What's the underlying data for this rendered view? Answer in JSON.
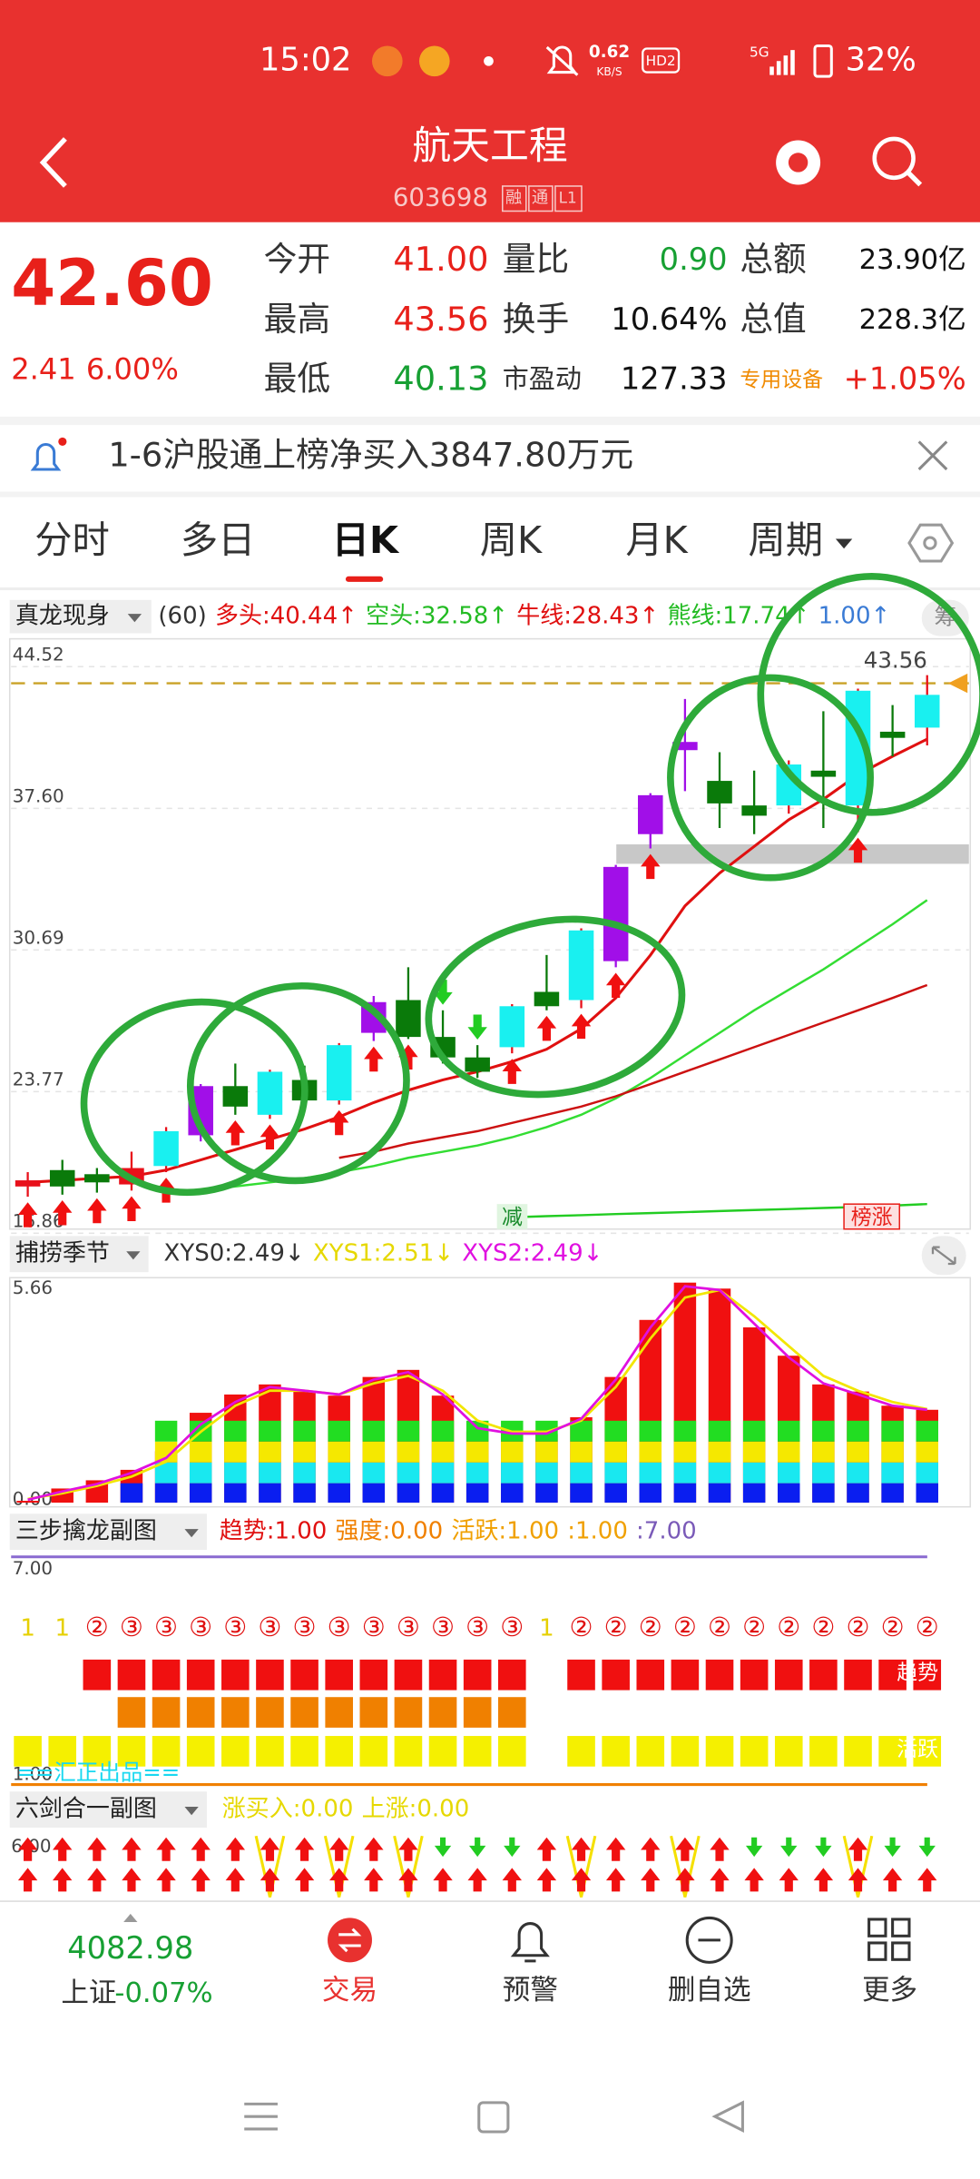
{
  "status_bar": {
    "time": "15:02",
    "speed": "0.62",
    "speed_unit": "KB/S",
    "hd": "HD2",
    "network": "5G",
    "battery": "32%"
  },
  "header": {
    "title": "航天工程",
    "code": "603698",
    "badges": [
      "融",
      "通",
      "L1"
    ]
  },
  "quote": {
    "price": "42.60",
    "change": "2.41",
    "change_pct": "6.00%",
    "rows": [
      [
        {
          "label": "今开",
          "value": "41.00"
        },
        {
          "label": "量比",
          "value": "0.90"
        },
        {
          "label": "总额",
          "value": "23.90亿"
        }
      ],
      [
        {
          "label": "最高",
          "value": "43.56"
        },
        {
          "label": "换手",
          "value": "10.64%"
        },
        {
          "label": "总值",
          "value": "228.3亿"
        }
      ],
      [
        {
          "label": "最低",
          "value": "40.13"
        },
        {
          "label": "市盈动",
          "value": "127.33"
        },
        {
          "label": "专用设备",
          "value": "+1.05%"
        }
      ]
    ]
  },
  "notice": {
    "text": "1-6沪股通上榜净买入3847.80万元"
  },
  "tabs": [
    "分时",
    "多日",
    "日K",
    "周K",
    "月K",
    "周期"
  ],
  "chart_data": [
    {
      "type": "candlestick",
      "title": "真龙现身",
      "button": "筹",
      "legend": [
        {
          "text": "(60)",
          "color": "#333333"
        },
        {
          "text": "多头:40.44↑",
          "color": "#e01010"
        },
        {
          "text": "空头:32.58↑",
          "color": "#22bb22"
        },
        {
          "text": "牛线:28.43↑",
          "color": "#e01010"
        },
        {
          "text": "熊线:17.74↑",
          "color": "#22bb22"
        },
        {
          "text": "1.00↑",
          "color": "#3a7bd5"
        }
      ],
      "ylim": [
        16.86,
        44.52
      ],
      "yticks": [
        16.86,
        23.77,
        30.69,
        {
          "value": 37.6,
          "label": "37.60"
        },
        44.52
      ],
      "open": [
        18.6,
        19.4,
        19.2,
        18.7,
        19.6,
        21.1,
        23.5,
        22.1,
        23.8,
        22.8,
        26.1,
        27.7,
        25.9,
        24.9,
        25.4,
        28.1,
        27.7,
        29.6,
        35.8,
        39.9,
        38.4,
        37.2,
        37.2,
        38.9,
        37.2,
        40.8,
        41.0
      ],
      "high": [
        19.3,
        19.9,
        19.5,
        20.3,
        21.5,
        23.6,
        24.6,
        24.3,
        24.5,
        25.6,
        27.9,
        29.3,
        27.2,
        25.5,
        27.5,
        29.9,
        31.2,
        34.3,
        37.8,
        42.4,
        39.8,
        38.9,
        39.4,
        41.8,
        42.9,
        42.1,
        43.56
      ],
      "low": [
        18.1,
        18.2,
        18.3,
        18.4,
        19.3,
        20.8,
        22.1,
        21.9,
        22.5,
        22.6,
        25.7,
        25.8,
        24.6,
        23.9,
        25.1,
        27.2,
        27.3,
        29.3,
        35.1,
        37.9,
        36.1,
        35.8,
        36.8,
        36.1,
        35.9,
        39.6,
        40.13
      ],
      "close": [
        18.9,
        18.6,
        18.8,
        19.5,
        21.3,
        23.5,
        22.5,
        24.2,
        22.8,
        25.5,
        27.6,
        25.9,
        24.9,
        24.2,
        27.4,
        27.4,
        31.1,
        34.2,
        37.7,
        40.3,
        37.3,
        36.7,
        39.2,
        38.6,
        42.8,
        40.5,
        42.6
      ],
      "colors": [
        "#e8101a",
        "#0a7a0a",
        "#0a7a0a",
        "#e8101a",
        "#19f0f0",
        "#a10fe8",
        "#0a7a0a",
        "#19f0f0",
        "#0a7a0a",
        "#19f0f0",
        "#a10fe8",
        "#0a7a0a",
        "#0a7a0a",
        "#0a7a0a",
        "#19f0f0",
        "#0a7a0a",
        "#19f0f0",
        "#a10fe8",
        "#a10fe8",
        "#a10fe8",
        "#0a7a0a",
        "#0a7a0a",
        "#19f0f0",
        "#0a7a0a",
        "#19f0f0",
        "#0a7a0a",
        "#19f0f0"
      ],
      "series": [
        {
          "color": "#e01010",
          "values": [
            18.8,
            18.9,
            19.0,
            19.1,
            19.4,
            19.9,
            20.4,
            20.9,
            21.4,
            22.0,
            22.7,
            23.3,
            23.8,
            24.2,
            24.7,
            25.3,
            26.3,
            27.8,
            29.9,
            32.3,
            33.9,
            35.2,
            36.5,
            37.5,
            38.7,
            39.6,
            40.44
          ]
        },
        {
          "color": "#33dd33",
          "values": [
            null,
            null,
            null,
            null,
            18.3,
            18.4,
            18.6,
            18.8,
            19.0,
            19.3,
            19.6,
            20.0,
            20.3,
            20.6,
            21.0,
            21.5,
            22.1,
            22.9,
            23.9,
            25.0,
            26.1,
            27.2,
            28.2,
            29.2,
            30.3,
            31.4,
            32.58
          ]
        },
        {
          "color": "#cc1111",
          "values": [
            null,
            null,
            null,
            null,
            null,
            null,
            null,
            null,
            null,
            20.0,
            20.3,
            20.7,
            21.0,
            21.3,
            21.7,
            22.1,
            22.5,
            23.0,
            23.6,
            24.2,
            24.8,
            25.4,
            26.0,
            26.6,
            27.2,
            27.8,
            28.43
          ]
        },
        {
          "color": "#22cc22",
          "values": [
            null,
            null,
            null,
            null,
            null,
            null,
            null,
            null,
            null,
            null,
            null,
            null,
            null,
            null,
            17.1,
            17.15,
            17.2,
            17.25,
            17.3,
            17.35,
            17.4,
            17.45,
            17.5,
            17.55,
            17.6,
            17.67,
            17.74
          ]
        }
      ],
      "high_label": "43.56",
      "annotations": [
        "减",
        "榜涨"
      ]
    },
    {
      "type": "bar",
      "title": "捕捞季节",
      "legend": [
        {
          "text": "XYS0:2.49↓",
          "color": "#333333"
        },
        {
          "text": "XYS1:2.51↓",
          "color": "#e6d800"
        },
        {
          "text": "XYS2:2.49↓",
          "color": "#e010e0"
        }
      ],
      "ylim": [
        0,
        5.66
      ],
      "yticks": [
        {
          "value": 0,
          "label": "0.00"
        },
        5.66
      ],
      "color": "#f01010",
      "values": [
        0.05,
        0.38,
        0.6,
        0.88,
        1.38,
        2.41,
        2.9,
        3.17,
        2.98,
        2.87,
        3.37,
        3.56,
        2.87,
        1.91,
        1.84,
        1.84,
        2.29,
        3.37,
        4.9,
        5.9,
        5.74,
        4.7,
        3.94,
        3.17,
        2.98,
        2.6,
        2.49
      ],
      "series": [
        {
          "color": "#f2e600",
          "values": [
            0.1,
            0.25,
            0.45,
            0.7,
            1.1,
            1.9,
            2.6,
            3.0,
            3.0,
            2.9,
            3.2,
            3.4,
            3.0,
            2.2,
            1.9,
            1.9,
            2.2,
            3.1,
            4.4,
            5.5,
            5.7,
            5.0,
            4.2,
            3.4,
            3.0,
            2.7,
            2.51
          ]
        },
        {
          "color": "#e010e0",
          "values": [
            0.08,
            0.3,
            0.5,
            0.8,
            1.2,
            2.1,
            2.7,
            3.1,
            3.0,
            2.9,
            3.3,
            3.5,
            2.9,
            2.0,
            1.85,
            1.85,
            2.25,
            3.3,
            4.7,
            5.8,
            5.7,
            4.8,
            3.9,
            3.2,
            2.9,
            2.6,
            2.49
          ]
        }
      ]
    },
    {
      "type": "signal",
      "title": "三步擒龙副图",
      "legend": [
        {
          "text": "趋势:1.00",
          "color": "#e01010"
        },
        {
          "text": "强度:0.00",
          "color": "#f08000"
        },
        {
          "text": "活跃:1.00",
          "color": "#f0a000"
        },
        {
          "text": ":1.00",
          "color": "#f0a000"
        },
        {
          "text": ":7.00",
          "color": "#7a5ab8"
        }
      ],
      "yticks": [
        {
          "value": 7,
          "label": "7.00"
        },
        {
          "value": 1,
          "label": "1.00"
        }
      ],
      "stages": [
        "1",
        "1",
        "②",
        "③",
        "③",
        "③",
        "③",
        "③",
        "③",
        "③",
        "③",
        "③",
        "③",
        "③",
        "③",
        "1",
        "②",
        "②",
        "②",
        "②",
        "②",
        "②",
        "②",
        "②",
        "②",
        "②",
        "②"
      ],
      "tags": [
        "趋势",
        "活跃"
      ],
      "footer": "==汇正出品=="
    },
    {
      "type": "arrows",
      "title": "六剑合一副图",
      "legend": [
        {
          "text": "涨买入:0.00",
          "color": "#e6d800"
        },
        {
          "text": "上涨:0.00",
          "color": "#e6d800"
        }
      ],
      "ytick_label": "6.00"
    }
  ],
  "bottom_nav": {
    "index_value": "4082.98",
    "index_name": "上证",
    "index_change": "-0.07%",
    "items": [
      "交易",
      "预警",
      "删自选",
      "更多"
    ]
  }
}
